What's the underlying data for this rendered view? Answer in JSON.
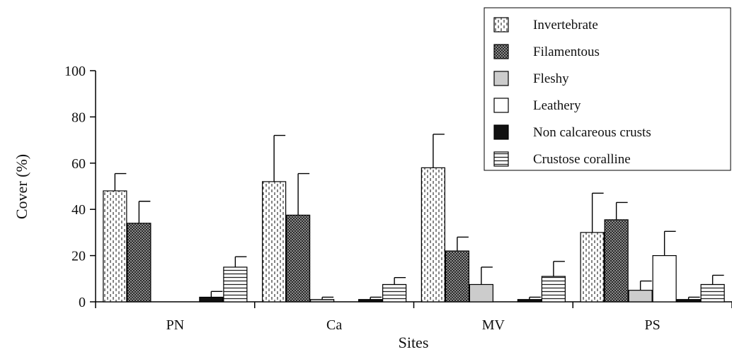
{
  "chart_data": {
    "type": "bar",
    "categories": [
      "PN",
      "Ca",
      "MV",
      "PS"
    ],
    "xlabel": "Sites",
    "ylabel": "Cover (%)",
    "ylim": [
      0,
      100
    ],
    "yticks": [
      0,
      20,
      40,
      60,
      80,
      100
    ],
    "grid": false,
    "legend_position": "top-right",
    "series": [
      {
        "name": "Invertebrate",
        "pattern": "dashed-vertical",
        "color": "#ffffff",
        "values": [
          48,
          52,
          58,
          30
        ],
        "errors": [
          7.5,
          20,
          14.5,
          17
        ]
      },
      {
        "name": "Filamentous",
        "pattern": "checker",
        "color": "#333333",
        "values": [
          34,
          37.5,
          22,
          35.5
        ],
        "errors": [
          9.5,
          18,
          6,
          7.5
        ]
      },
      {
        "name": "Fleshy",
        "pattern": "solid",
        "color": "#cccccc",
        "values": [
          0,
          1,
          7.5,
          5
        ],
        "errors": [
          0,
          1,
          7.5,
          4
        ]
      },
      {
        "name": "Leathery",
        "pattern": "solid",
        "color": "#ffffff",
        "values": [
          0,
          0,
          0,
          20
        ],
        "errors": [
          0,
          0,
          0,
          10.5
        ]
      },
      {
        "name": "Non calcareous crusts",
        "pattern": "solid",
        "color": "#111111",
        "values": [
          2,
          1,
          1,
          1
        ],
        "errors": [
          2.5,
          1,
          1,
          1
        ]
      },
      {
        "name": "Crustose coralline",
        "pattern": "horizontal-lines",
        "color": "#ffffff",
        "values": [
          15,
          7.5,
          11,
          7.5
        ],
        "errors": [
          4.5,
          3,
          6.5,
          4
        ]
      }
    ]
  }
}
